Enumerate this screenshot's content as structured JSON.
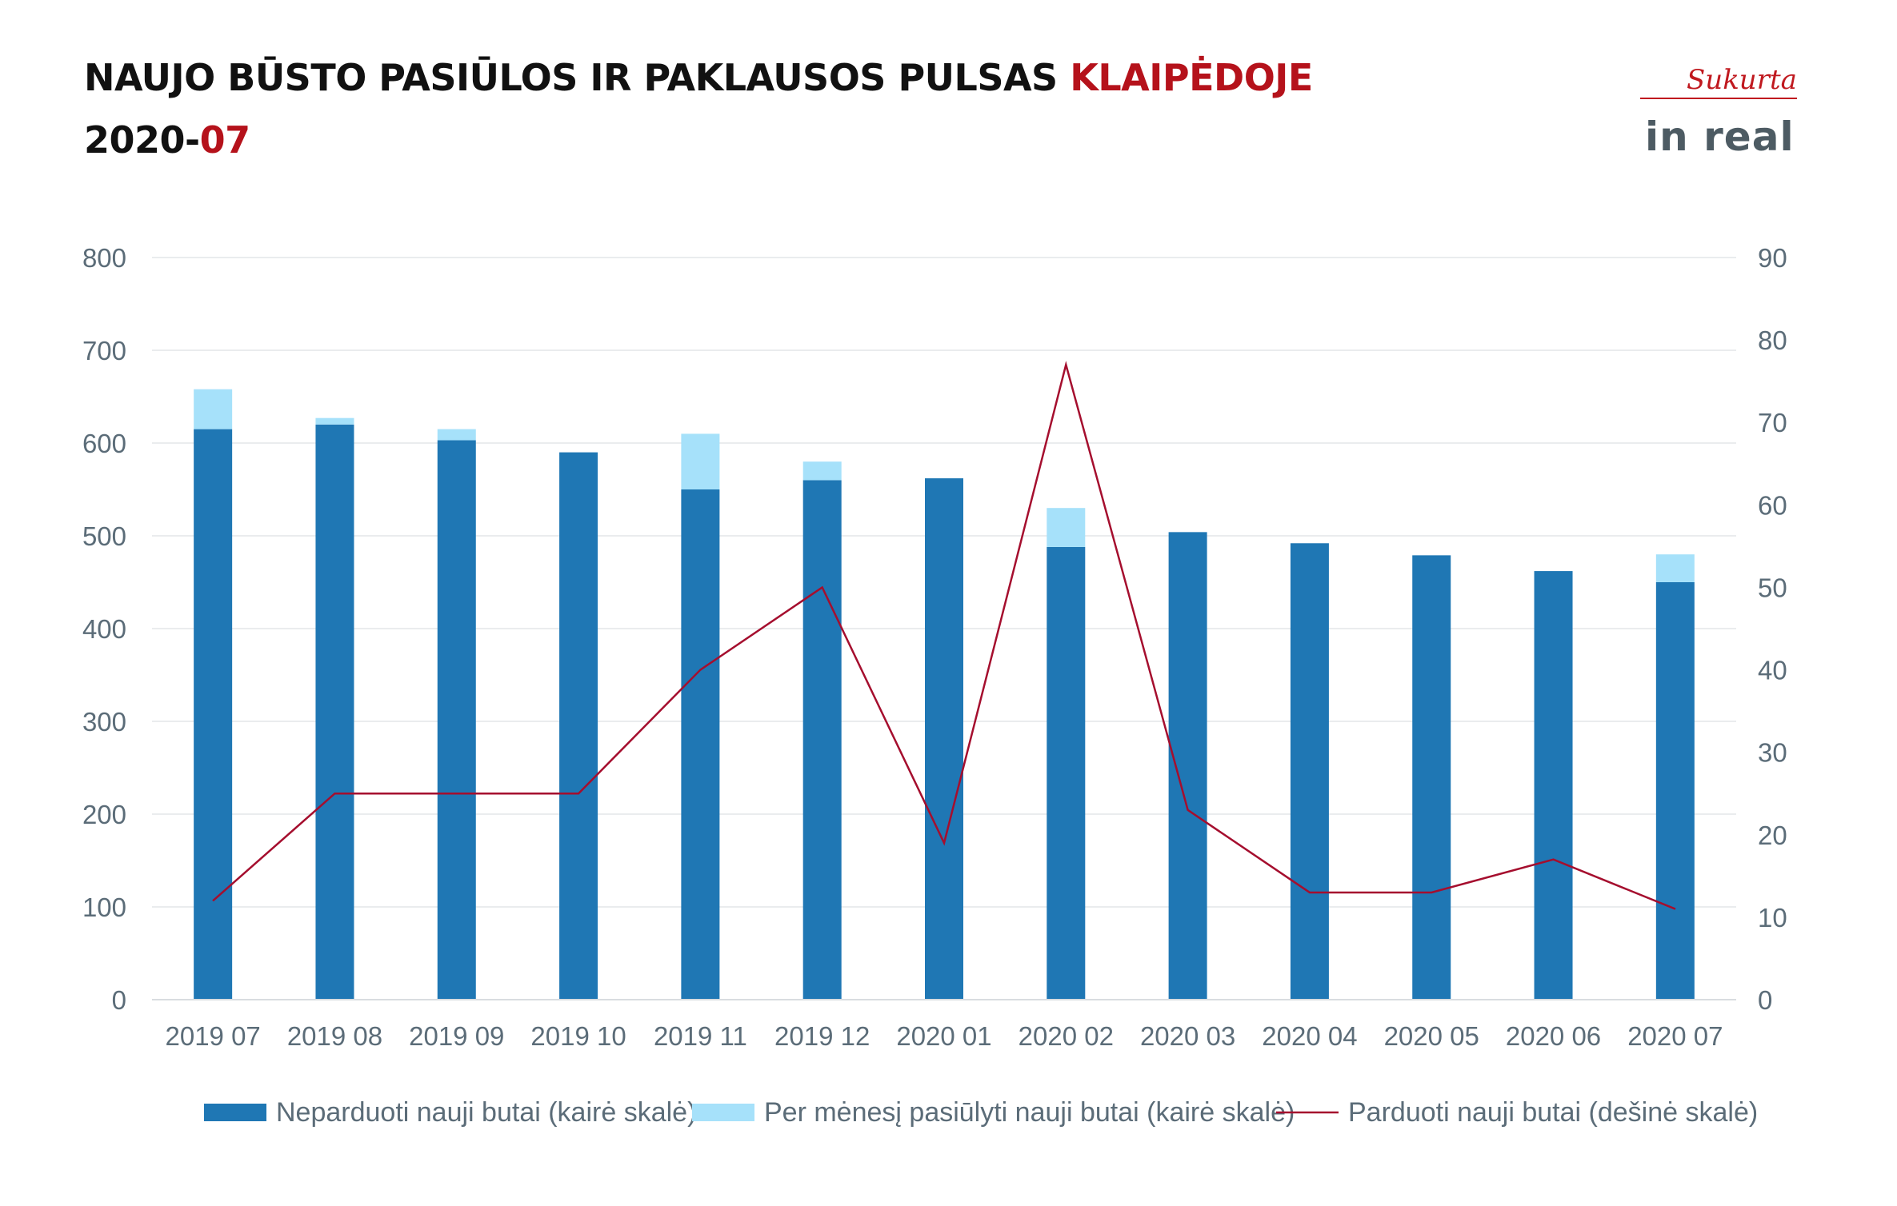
{
  "header": {
    "title_main": "NAUJO BŪSTO PASIŪLOS IR PAKLAUSOS PULSAS ",
    "title_city": "KLAIPĖDOJE",
    "period_prefix": "2020-",
    "period_month": "07"
  },
  "logo": {
    "tagline": "Sukurta",
    "brand": "in real"
  },
  "colors": {
    "accent": "#b5121b",
    "unsold_bar": "#1f77b4",
    "offered_bar": "#a6e1fa",
    "sold_line": "#a50e2e",
    "grid": "#e3e6e8",
    "text": "#5b6c78"
  },
  "chart_data": {
    "type": "bar",
    "stacked": true,
    "categories": [
      "2019 07",
      "2019 08",
      "2019 09",
      "2019 10",
      "2019 11",
      "2019 12",
      "2020 01",
      "2020 02",
      "2020 03",
      "2020 04",
      "2020 05",
      "2020 06",
      "2020 07"
    ],
    "series": [
      {
        "name": "Neparduoti nauji butai (kairė skalė)",
        "type": "bar",
        "axis": "left",
        "color": "#1f77b4",
        "values": [
          615,
          620,
          603,
          590,
          550,
          560,
          562,
          488,
          504,
          492,
          479,
          462,
          450
        ]
      },
      {
        "name": "Per mėnesį pasiūlyti nauji butai (kairė skalė)",
        "type": "bar",
        "axis": "left",
        "color": "#a6e1fa",
        "values": [
          43,
          7,
          12,
          0,
          60,
          20,
          0,
          42,
          0,
          0,
          0,
          0,
          30
        ]
      },
      {
        "name": "Parduoti nauji butai (dešinė skalė)",
        "type": "line",
        "axis": "right",
        "color": "#a50e2e",
        "values": [
          12,
          25,
          25,
          25,
          40,
          50,
          19,
          77,
          23,
          13,
          13,
          17,
          11
        ]
      }
    ],
    "y_left": {
      "min": 0,
      "max": 800,
      "step": 100,
      "ticks": [
        "0",
        "100",
        "200",
        "300",
        "400",
        "500",
        "600",
        "700",
        "800"
      ]
    },
    "y_right": {
      "min": 0,
      "max": 90,
      "step": 10,
      "ticks": [
        "0",
        "10",
        "20",
        "30",
        "40",
        "50",
        "60",
        "70",
        "80",
        "90"
      ]
    },
    "grid": true,
    "legend_position": "bottom"
  }
}
